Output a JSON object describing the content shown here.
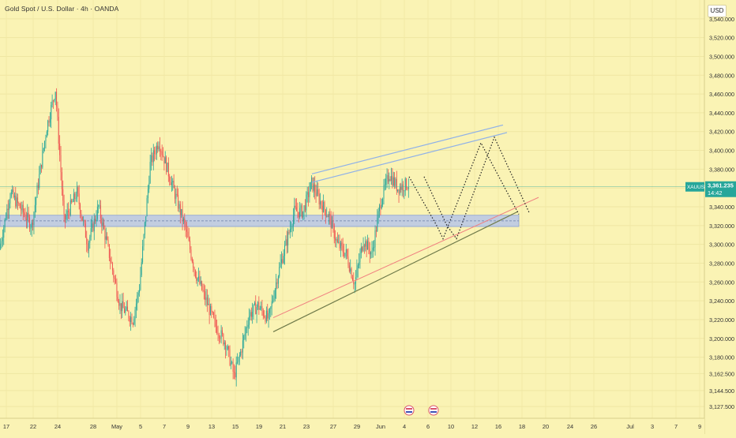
{
  "header": {
    "title": "Gold Spot / U.S. Dollar · 4h · OANDA"
  },
  "price_scale": {
    "currency": "USD"
  },
  "price_tag": {
    "symbol": "XAUUSD",
    "price": "3,361.235",
    "countdown": "14:42"
  },
  "colors": {
    "background": "#faf3b4",
    "bull": "#26a69a",
    "bear": "#ef5350",
    "channel": "#8fb1e8",
    "support_line": "#6f7a4a",
    "red_line": "#f08080",
    "zone": "#b7c6e8",
    "current_price_line": "#26a69a",
    "projection": "#222222"
  },
  "chart_data": {
    "type": "candlestick",
    "symbol": "XAUUSD",
    "timeframe": "4h",
    "y_tick_labels": [
      "3,127.500",
      "3,144.500",
      "3,162.500",
      "3,180.000",
      "3,200.000",
      "3,220.000",
      "3,240.000",
      "3,260.000",
      "3,280.000",
      "3,300.000",
      "3,320.000",
      "3,340.000",
      "3,360.000",
      "3,380.000",
      "3,400.000",
      "3,420.000",
      "3,440.000",
      "3,460.000",
      "3,480.000",
      "3,500.000",
      "3,520.000",
      "3,540.000"
    ],
    "x_tick_labels": [
      "17",
      "22",
      "24",
      "28",
      "May",
      "5",
      "7",
      "9",
      "13",
      "15",
      "19",
      "21",
      "23",
      "27",
      "29",
      "Jun",
      "4",
      "6",
      "10",
      "12",
      "16",
      "18",
      "20",
      "24",
      "26",
      "Jul",
      "3",
      "7",
      "9"
    ],
    "ylim": [
      3115,
      3560
    ],
    "current_price": 3361.235,
    "zone": [
      3319,
      3331
    ],
    "zone_mid": 3325,
    "annotations": {
      "support_line": [
        {
          "x": "May 20",
          "y": 3207
        },
        {
          "x": "Jun 18",
          "y": 3335
        }
      ],
      "red_line": [
        {
          "x": "May 20",
          "y": 3222
        },
        {
          "x": "Jun 19",
          "y": 3350
        }
      ],
      "channel_upper": [
        {
          "x": "May 23",
          "y": 3375
        },
        {
          "x": "Jun 15",
          "y": 3427
        }
      ],
      "channel_lower": [
        {
          "x": "May 23",
          "y": 3366
        },
        {
          "x": "Jun 16",
          "y": 3419
        }
      ]
    },
    "projection_paths": [
      [
        [
          3378,
          3372
        ],
        [
          3354,
          3320
        ],
        [
          3340,
          3306
        ],
        [
          3324,
          3408
        ],
        [
          3316,
          3332
        ]
      ],
      [
        [
          3389,
          3372
        ],
        [
          3366,
          3320
        ],
        [
          3352,
          3306
        ],
        [
          3343,
          3414
        ],
        [
          3330,
          3334
        ]
      ]
    ],
    "anchors": [
      {
        "t": 0,
        "p": 3295
      },
      {
        "t": 10,
        "p": 3355
      },
      {
        "t": 30,
        "p": 3320
      },
      {
        "t": 44,
        "p": 3425
      },
      {
        "t": 52,
        "p": 3465
      },
      {
        "t": 60,
        "p": 3325
      },
      {
        "t": 72,
        "p": 3355
      },
      {
        "t": 82,
        "p": 3300
      },
      {
        "t": 92,
        "p": 3340
      },
      {
        "t": 100,
        "p": 3300
      },
      {
        "t": 112,
        "p": 3235
      },
      {
        "t": 124,
        "p": 3220
      },
      {
        "t": 130,
        "p": 3255
      },
      {
        "t": 140,
        "p": 3385
      },
      {
        "t": 148,
        "p": 3410
      },
      {
        "t": 156,
        "p": 3380
      },
      {
        "t": 164,
        "p": 3350
      },
      {
        "t": 172,
        "p": 3320
      },
      {
        "t": 182,
        "p": 3270
      },
      {
        "t": 192,
        "p": 3240
      },
      {
        "t": 200,
        "p": 3215
      },
      {
        "t": 210,
        "p": 3195
      },
      {
        "t": 218,
        "p": 3160
      },
      {
        "t": 224,
        "p": 3185
      },
      {
        "t": 232,
        "p": 3225
      },
      {
        "t": 240,
        "p": 3235
      },
      {
        "t": 250,
        "p": 3220
      },
      {
        "t": 258,
        "p": 3265
      },
      {
        "t": 266,
        "p": 3300
      },
      {
        "t": 274,
        "p": 3335
      },
      {
        "t": 282,
        "p": 3335
      },
      {
        "t": 290,
        "p": 3365
      },
      {
        "t": 298,
        "p": 3345
      },
      {
        "t": 306,
        "p": 3330
      },
      {
        "t": 314,
        "p": 3300
      },
      {
        "t": 322,
        "p": 3290
      },
      {
        "t": 330,
        "p": 3258
      },
      {
        "t": 338,
        "p": 3305
      },
      {
        "t": 346,
        "p": 3290
      },
      {
        "t": 354,
        "p": 3345
      },
      {
        "t": 362,
        "p": 3375
      },
      {
        "t": 370,
        "p": 3360
      },
      {
        "t": 378,
        "p": 3364
      }
    ]
  }
}
